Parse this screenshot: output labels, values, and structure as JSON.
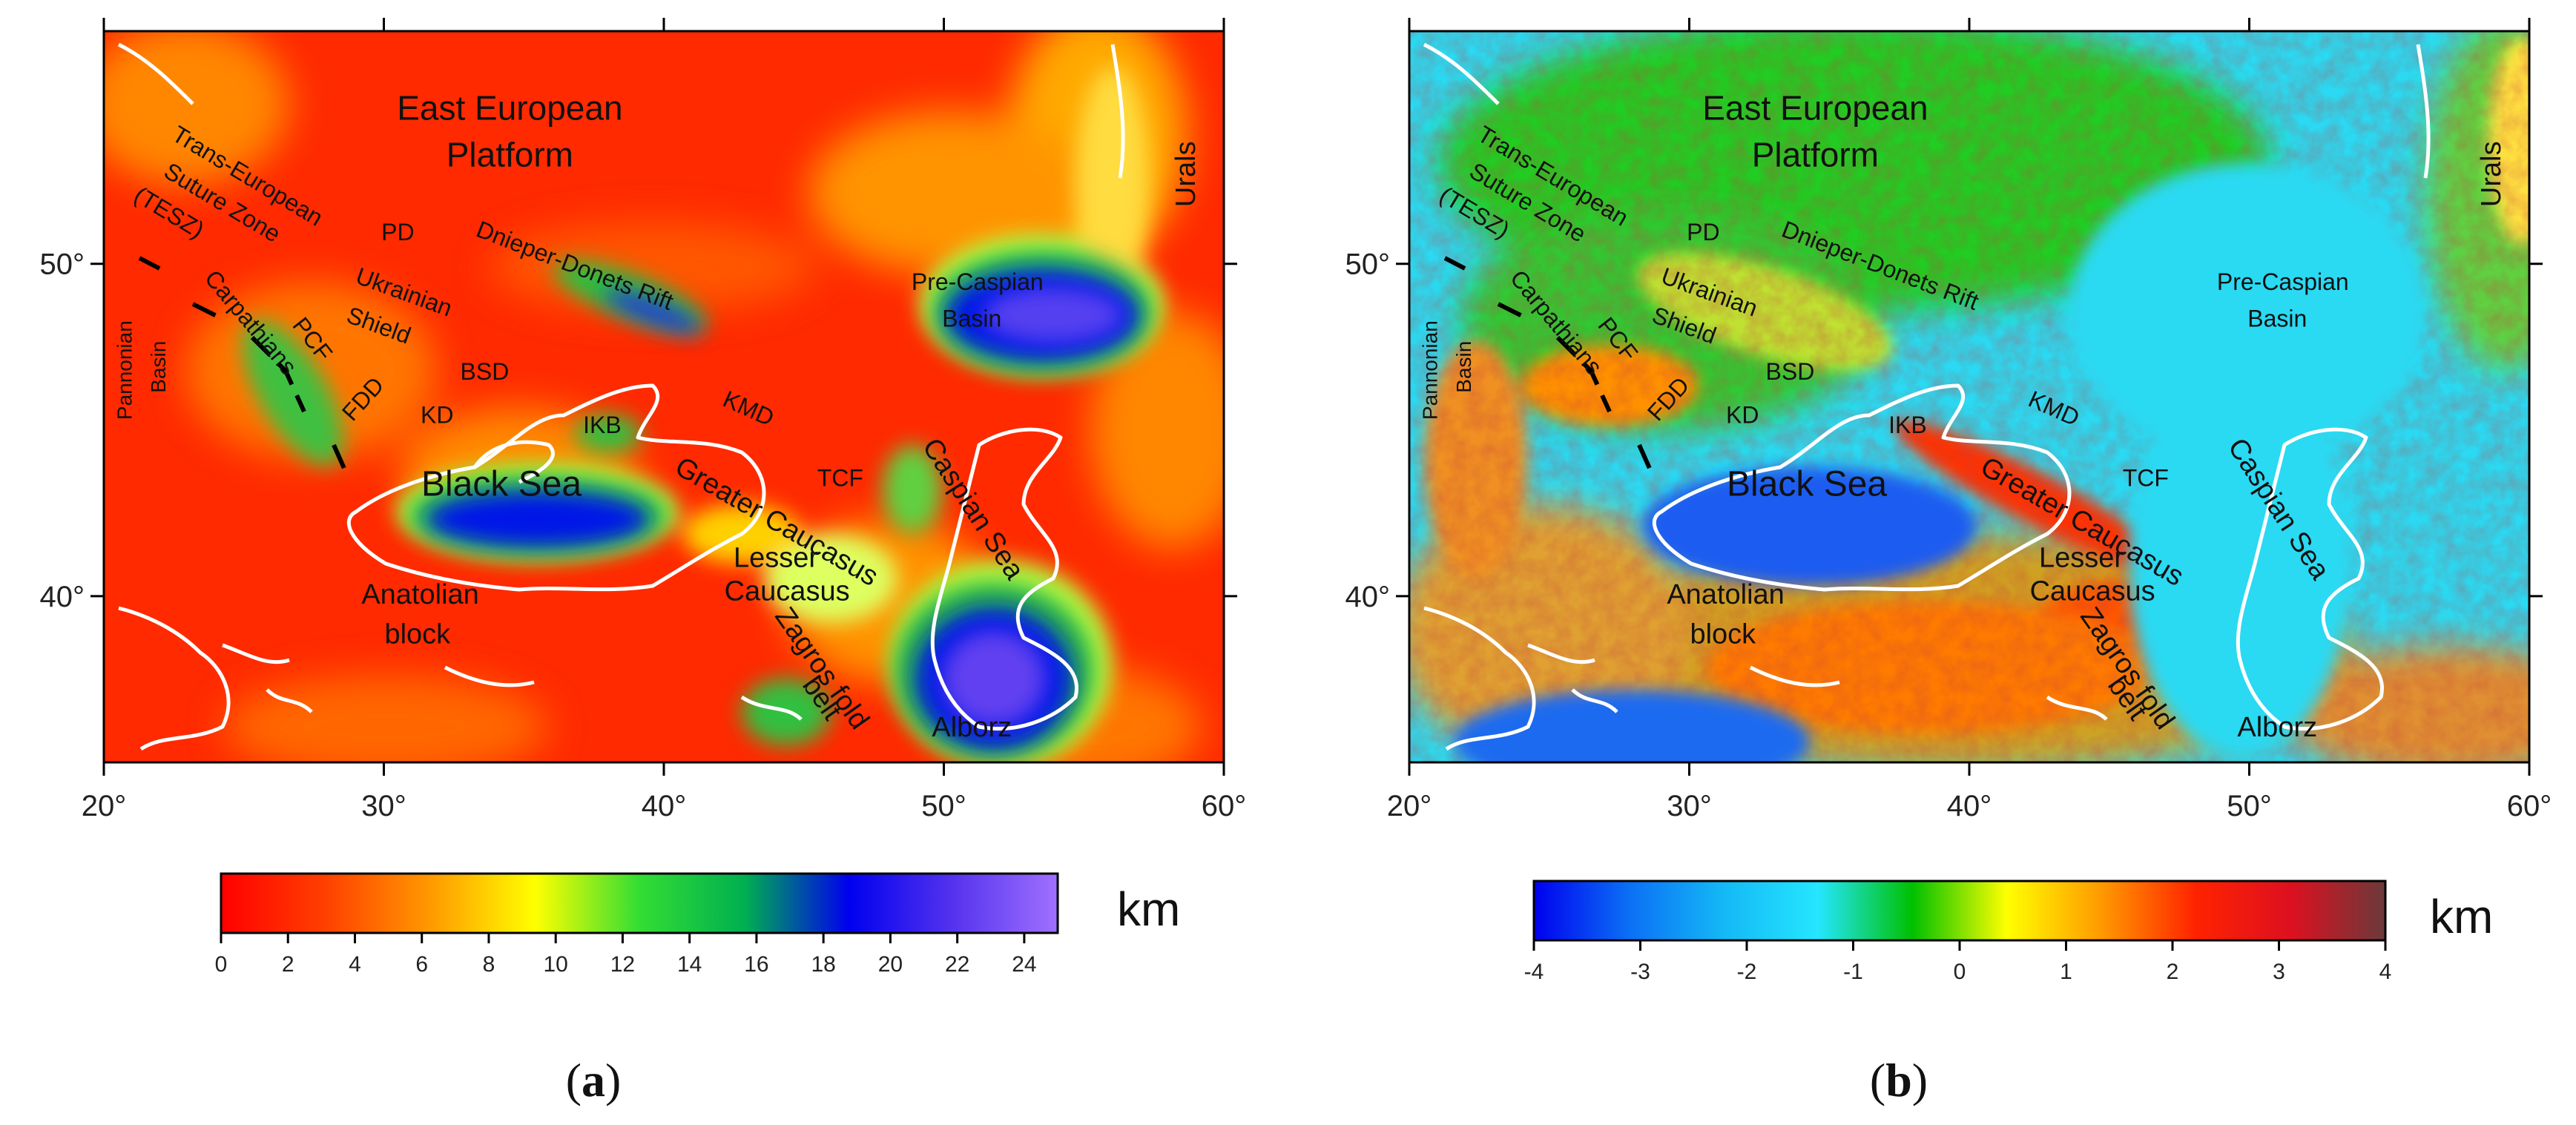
{
  "panels": [
    {
      "id": "a",
      "caption": "(a)",
      "caption_letter": "a",
      "colormap": "sediment",
      "x_ticks": [
        "20°",
        "30°",
        "40°",
        "50°",
        "60°"
      ],
      "y_ticks": [
        "50°",
        "40°"
      ],
      "labels": [
        {
          "text": "East European",
          "lon": 34.5,
          "lat": 54.6,
          "size": 46,
          "rot": 0
        },
        {
          "text": "Platform",
          "lon": 34.5,
          "lat": 53.2,
          "size": 46,
          "rot": 0
        },
        {
          "text": "Urals",
          "lon": 58.7,
          "lat": 52.7,
          "size": 38,
          "rot": -90
        },
        {
          "text": "Trans-European",
          "lon": 25.1,
          "lat": 52.6,
          "size": 32,
          "rot": 31
        },
        {
          "text": "Suture Zone",
          "lon": 24.2,
          "lat": 51.8,
          "size": 32,
          "rot": 31
        },
        {
          "text": "(TESZ)",
          "lon": 22.3,
          "lat": 51.5,
          "size": 32,
          "rot": 31
        },
        {
          "text": "PD",
          "lon": 30.5,
          "lat": 50.9,
          "size": 32,
          "rot": 0
        },
        {
          "text": "Dnieper-Donets Rift",
          "lon": 36.8,
          "lat": 49.9,
          "size": 32,
          "rot": 21
        },
        {
          "text": "Pre-Caspian",
          "lon": 51.2,
          "lat": 49.4,
          "size": 32,
          "rot": 0
        },
        {
          "text": "Basin",
          "lon": 51.0,
          "lat": 48.3,
          "size": 32,
          "rot": 0
        },
        {
          "text": "Ukrainian",
          "lon": 30.7,
          "lat": 49.1,
          "size": 32,
          "rot": 20
        },
        {
          "text": "Shield",
          "lon": 29.8,
          "lat": 48.1,
          "size": 32,
          "rot": 20
        },
        {
          "text": "BSD",
          "lon": 33.6,
          "lat": 46.7,
          "size": 32,
          "rot": 0
        },
        {
          "text": "Carpathians",
          "lon": 25.2,
          "lat": 48.2,
          "size": 32,
          "rot": 50
        },
        {
          "text": "PCF",
          "lon": 27.4,
          "lat": 47.7,
          "size": 32,
          "rot": 52
        },
        {
          "text": "Pannonian",
          "lon": 20.8,
          "lat": 46.8,
          "size": 28,
          "rot": -90
        },
        {
          "text": "Basin",
          "lon": 22.0,
          "lat": 46.9,
          "size": 28,
          "rot": -90
        },
        {
          "text": "FDD",
          "lon": 29.3,
          "lat": 45.9,
          "size": 32,
          "rot": -48
        },
        {
          "text": "KD",
          "lon": 31.9,
          "lat": 45.4,
          "size": 32,
          "rot": 0
        },
        {
          "text": "IKB",
          "lon": 37.8,
          "lat": 45.1,
          "size": 32,
          "rot": 0
        },
        {
          "text": "KMD",
          "lon": 43.0,
          "lat": 45.6,
          "size": 32,
          "rot": 24
        },
        {
          "text": "TCF",
          "lon": 46.3,
          "lat": 43.5,
          "size": 32,
          "rot": 0
        },
        {
          "text": "Black Sea",
          "lon": 34.2,
          "lat": 43.3,
          "size": 48,
          "rot": 0
        },
        {
          "text": "Greater Caucasus",
          "lon": 44.0,
          "lat": 42.2,
          "size": 38,
          "rot": 30
        },
        {
          "text": "Caspian Sea",
          "lon": 51.0,
          "lat": 42.6,
          "size": 38,
          "rot": 57
        },
        {
          "text": "Lesser",
          "lon": 44.0,
          "lat": 41.1,
          "size": 38,
          "rot": 0
        },
        {
          "text": "Caucasus",
          "lon": 44.4,
          "lat": 40.1,
          "size": 38,
          "rot": 0
        },
        {
          "text": "Anatolian",
          "lon": 31.3,
          "lat": 40.0,
          "size": 38,
          "rot": 0
        },
        {
          "text": "block",
          "lon": 31.2,
          "lat": 38.8,
          "size": 38,
          "rot": 0
        },
        {
          "text": "Zagros fold",
          "lon": 45.6,
          "lat": 37.8,
          "size": 38,
          "rot": 55
        },
        {
          "text": "belt",
          "lon": 45.6,
          "lat": 36.9,
          "size": 38,
          "rot": 55
        },
        {
          "text": "Alborz",
          "lon": 51.0,
          "lat": 36.0,
          "size": 38,
          "rot": 0
        }
      ],
      "colorbar": {
        "stops": [
          "#ff0000",
          "#ff4000",
          "#ff9900",
          "#ffff00",
          "#33dd33",
          "#00b050",
          "#0000ee",
          "#5533ee",
          "#a070ff"
        ],
        "ticks": [
          "0",
          "2",
          "4",
          "6",
          "8",
          "10",
          "12",
          "14",
          "16",
          "18",
          "20",
          "22",
          "24"
        ],
        "unit": "km"
      }
    },
    {
      "id": "b",
      "caption": "(b)",
      "caption_letter": "b",
      "colormap": "topo",
      "x_ticks": [
        "20°",
        "30°",
        "40°",
        "50°",
        "60°"
      ],
      "y_ticks": [
        "50°",
        "40°"
      ],
      "labels": [
        {
          "text": "East European",
          "lon": 34.5,
          "lat": 54.6,
          "size": 46,
          "rot": 0
        },
        {
          "text": "Platform",
          "lon": 34.5,
          "lat": 53.2,
          "size": 46,
          "rot": 0
        },
        {
          "text": "Urals",
          "lon": 58.7,
          "lat": 52.7,
          "size": 38,
          "rot": -90
        },
        {
          "text": "Trans-European",
          "lon": 25.1,
          "lat": 52.6,
          "size": 32,
          "rot": 31
        },
        {
          "text": "Suture Zone",
          "lon": 24.2,
          "lat": 51.8,
          "size": 32,
          "rot": 31
        },
        {
          "text": "(TESZ)",
          "lon": 22.3,
          "lat": 51.5,
          "size": 32,
          "rot": 31
        },
        {
          "text": "PD",
          "lon": 30.5,
          "lat": 50.9,
          "size": 32,
          "rot": 0
        },
        {
          "text": "Dnieper-Donets Rift",
          "lon": 36.8,
          "lat": 49.9,
          "size": 32,
          "rot": 21
        },
        {
          "text": "Pre-Caspian",
          "lon": 51.2,
          "lat": 49.4,
          "size": 32,
          "rot": 0
        },
        {
          "text": "Basin",
          "lon": 51.0,
          "lat": 48.3,
          "size": 32,
          "rot": 0
        },
        {
          "text": "Ukrainian",
          "lon": 30.7,
          "lat": 49.1,
          "size": 32,
          "rot": 20
        },
        {
          "text": "Shield",
          "lon": 29.8,
          "lat": 48.1,
          "size": 32,
          "rot": 20
        },
        {
          "text": "BSD",
          "lon": 33.6,
          "lat": 46.7,
          "size": 32,
          "rot": 0
        },
        {
          "text": "Carpathians",
          "lon": 25.2,
          "lat": 48.2,
          "size": 32,
          "rot": 50
        },
        {
          "text": "PCF",
          "lon": 27.4,
          "lat": 47.7,
          "size": 32,
          "rot": 52
        },
        {
          "text": "Pannonian",
          "lon": 20.8,
          "lat": 46.8,
          "size": 28,
          "rot": -90
        },
        {
          "text": "Basin",
          "lon": 22.0,
          "lat": 46.9,
          "size": 28,
          "rot": -90
        },
        {
          "text": "FDD",
          "lon": 29.3,
          "lat": 45.9,
          "size": 32,
          "rot": -48
        },
        {
          "text": "KD",
          "lon": 31.9,
          "lat": 45.4,
          "size": 32,
          "rot": 0
        },
        {
          "text": "IKB",
          "lon": 37.8,
          "lat": 45.1,
          "size": 32,
          "rot": 0
        },
        {
          "text": "KMD",
          "lon": 43.0,
          "lat": 45.6,
          "size": 32,
          "rot": 24
        },
        {
          "text": "TCF",
          "lon": 46.3,
          "lat": 43.5,
          "size": 32,
          "rot": 0
        },
        {
          "text": "Black Sea",
          "lon": 34.2,
          "lat": 43.3,
          "size": 48,
          "rot": 0
        },
        {
          "text": "Greater Caucasus",
          "lon": 44.0,
          "lat": 42.2,
          "size": 38,
          "rot": 30
        },
        {
          "text": "Caspian Sea",
          "lon": 51.0,
          "lat": 42.6,
          "size": 38,
          "rot": 57
        },
        {
          "text": "Lesser",
          "lon": 44.0,
          "lat": 41.1,
          "size": 38,
          "rot": 0
        },
        {
          "text": "Caucasus",
          "lon": 44.4,
          "lat": 40.1,
          "size": 38,
          "rot": 0
        },
        {
          "text": "Anatolian",
          "lon": 31.3,
          "lat": 40.0,
          "size": 38,
          "rot": 0
        },
        {
          "text": "block",
          "lon": 31.2,
          "lat": 38.8,
          "size": 38,
          "rot": 0
        },
        {
          "text": "Zagros fold",
          "lon": 45.6,
          "lat": 37.8,
          "size": 38,
          "rot": 55
        },
        {
          "text": "belt",
          "lon": 45.6,
          "lat": 36.9,
          "size": 38,
          "rot": 55
        },
        {
          "text": "Alborz",
          "lon": 51.0,
          "lat": 36.0,
          "size": 38,
          "rot": 0
        }
      ],
      "colorbar": {
        "stops": [
          "#0000ee",
          "#0b6ff5",
          "#14b8f5",
          "#25e6ff",
          "#00c000",
          "#ffff00",
          "#ff9900",
          "#ff2200",
          "#dd1020",
          "#6a3a3a"
        ],
        "ticks": [
          "-4",
          "-3",
          "-2",
          "-1",
          "0",
          "1",
          "2",
          "3",
          "4"
        ],
        "unit": "km"
      }
    }
  ]
}
